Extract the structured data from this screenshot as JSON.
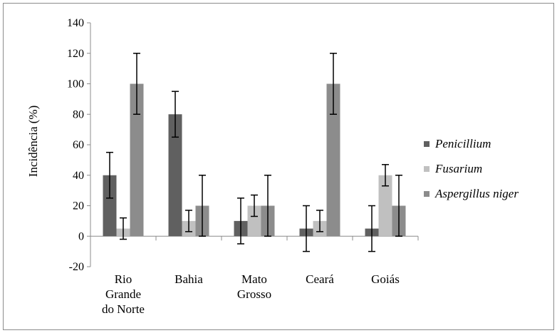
{
  "chart_data": {
    "type": "bar",
    "title": "",
    "xlabel": "",
    "ylabel": "Incidência (%)",
    "ylim": [
      -20,
      140
    ],
    "yticks": [
      -20,
      0,
      20,
      40,
      60,
      80,
      100,
      120,
      140
    ],
    "categories": [
      [
        "Rio",
        "Grande",
        "do Norte"
      ],
      [
        "Bahia"
      ],
      [
        "Mato",
        "Grosso"
      ],
      [
        "Ceará"
      ],
      [
        "Goiás"
      ]
    ],
    "series": [
      {
        "name": "Penicillium",
        "color": "#606060",
        "values": [
          40,
          80,
          10,
          5,
          5
        ],
        "errors": [
          15,
          15,
          15,
          15,
          15
        ]
      },
      {
        "name": "Fusarium",
        "color": "#c0c0c0",
        "values": [
          5,
          10,
          20,
          10,
          40
        ],
        "errors": [
          7,
          7,
          7,
          7,
          7
        ]
      },
      {
        "name": "Aspergillus niger",
        "color": "#8c8c8c",
        "values": [
          100,
          20,
          20,
          100,
          20
        ],
        "errors": [
          20,
          20,
          20,
          20,
          20
        ]
      }
    ],
    "grid": false,
    "legend": "right"
  }
}
